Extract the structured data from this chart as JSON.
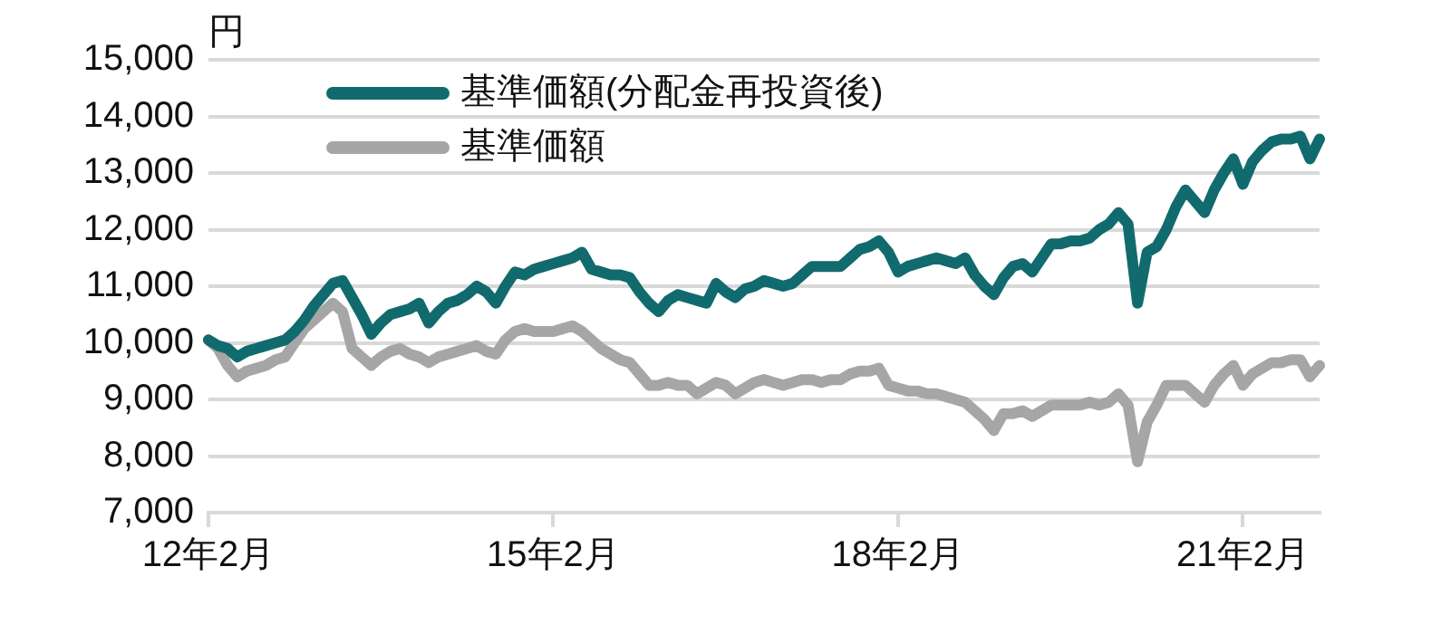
{
  "chart_data": {
    "type": "line",
    "ylabel": "円",
    "categories": [
      "12年2月",
      null,
      null,
      null,
      null,
      null,
      null,
      null,
      null,
      null,
      null,
      null,
      null,
      null,
      null,
      null,
      null,
      null,
      null,
      null,
      null,
      null,
      null,
      null,
      null,
      null,
      null,
      null,
      null,
      null,
      null,
      null,
      null,
      null,
      null,
      null,
      "15年2月",
      null,
      null,
      null,
      null,
      null,
      null,
      null,
      null,
      null,
      null,
      null,
      null,
      null,
      null,
      null,
      null,
      null,
      null,
      null,
      null,
      null,
      null,
      null,
      null,
      null,
      null,
      null,
      null,
      null,
      null,
      null,
      null,
      null,
      null,
      null,
      "18年2月",
      null,
      null,
      null,
      null,
      null,
      null,
      null,
      null,
      null,
      null,
      null,
      null,
      null,
      null,
      null,
      null,
      null,
      null,
      null,
      null,
      null,
      null,
      null,
      null,
      null,
      null,
      null,
      null,
      null,
      null,
      null,
      null,
      null,
      null,
      null,
      "21年2月",
      null,
      null,
      null,
      null,
      null,
      null,
      null,
      null
    ],
    "ylim": [
      7000,
      15000
    ],
    "yticks": [
      {
        "value": 7000,
        "label": "7,000"
      },
      {
        "value": 8000,
        "label": "8,000"
      },
      {
        "value": 9000,
        "label": "9,000"
      },
      {
        "value": 10000,
        "label": "10,000"
      },
      {
        "value": 11000,
        "label": "11,000"
      },
      {
        "value": 12000,
        "label": "12,000"
      },
      {
        "value": 13000,
        "label": "13,000"
      },
      {
        "value": 14000,
        "label": "14,000"
      },
      {
        "value": 15000,
        "label": "15,000"
      }
    ],
    "grid": "y",
    "legend": "top left",
    "marker": "none",
    "line_style": "solid",
    "series": [
      {
        "name": "基準価額(分配金再投資後)",
        "color": "#116b6e",
        "values": [
          10050,
          9950,
          9900,
          9750,
          9850,
          9900,
          9950,
          10000,
          10050,
          10200,
          10400,
          10650,
          10850,
          11050,
          11100,
          10800,
          10500,
          10150,
          10350,
          10500,
          10550,
          10600,
          10700,
          10350,
          10550,
          10700,
          10750,
          10850,
          11000,
          10900,
          10700,
          11000,
          11250,
          11200,
          11300,
          11350,
          11400,
          11450,
          11500,
          11600,
          11300,
          11250,
          11200,
          11200,
          11150,
          10900,
          10700,
          10550,
          10750,
          10850,
          10800,
          10750,
          10700,
          11050,
          10900,
          10800,
          10950,
          11000,
          11100,
          11050,
          11000,
          11050,
          11200,
          11350,
          11350,
          11350,
          11350,
          11500,
          11650,
          11700,
          11800,
          11600,
          11250,
          11350,
          11400,
          11450,
          11500,
          11450,
          11400,
          11500,
          11200,
          11000,
          10850,
          11150,
          11350,
          11400,
          11250,
          11500,
          11750,
          11750,
          11800,
          11800,
          11850,
          12000,
          12100,
          12300,
          12100,
          10700,
          11600,
          11700,
          12000,
          12400,
          12700,
          12500,
          12300,
          12700,
          13000,
          13250,
          12800,
          13200,
          13400,
          13550,
          13600,
          13600,
          13650,
          13250,
          13600
        ]
      },
      {
        "name": "基準価額",
        "color": "#a6a6a6",
        "values": [
          10050,
          9900,
          9600,
          9400,
          9500,
          9550,
          9600,
          9700,
          9750,
          10000,
          10250,
          10400,
          10550,
          10700,
          10550,
          9900,
          9750,
          9600,
          9750,
          9850,
          9900,
          9800,
          9750,
          9650,
          9750,
          9800,
          9850,
          9900,
          9950,
          9850,
          9800,
          10050,
          10200,
          10250,
          10200,
          10200,
          10200,
          10250,
          10300,
          10200,
          10050,
          9900,
          9800,
          9700,
          9650,
          9450,
          9250,
          9250,
          9300,
          9250,
          9250,
          9100,
          9200,
          9300,
          9250,
          9100,
          9200,
          9300,
          9350,
          9300,
          9250,
          9300,
          9350,
          9350,
          9300,
          9350,
          9350,
          9450,
          9500,
          9500,
          9550,
          9250,
          9200,
          9150,
          9150,
          9100,
          9100,
          9050,
          9000,
          8950,
          8800,
          8650,
          8450,
          8750,
          8750,
          8800,
          8700,
          8800,
          8900,
          8900,
          8900,
          8900,
          8950,
          8900,
          8950,
          9100,
          8900,
          7900,
          8600,
          8900,
          9250,
          9250,
          9250,
          9100,
          8950,
          9250,
          9450,
          9600,
          9250,
          9450,
          9550,
          9650,
          9650,
          9700,
          9700,
          9400,
          9600
        ]
      }
    ]
  }
}
